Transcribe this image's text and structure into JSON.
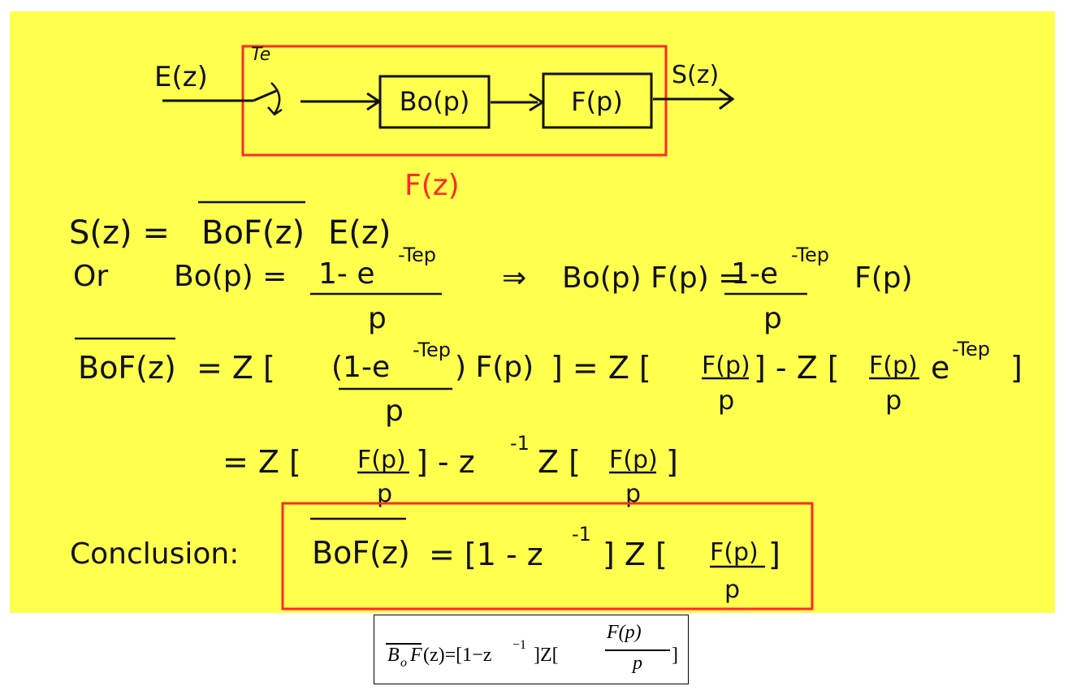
{
  "colors": {
    "board": "#ffff4d",
    "ink": "#111111",
    "highlight": "#ff2a2a"
  },
  "diagram": {
    "input": "E(z)",
    "sampler": "Te",
    "blocks": [
      "Bo(p)",
      "F(p)"
    ],
    "output": "S(z)",
    "group_label": "F(z)"
  },
  "equations": {
    "line1": {
      "lhs": "S(z) =",
      "bar": "BoF(z)",
      "rhs": "E(z)"
    },
    "line2": {
      "or": "Or",
      "bo": "Bo(p) =",
      "num": "1- e",
      "exp": "-Tep",
      "den": "p",
      "implies": "⇒",
      "mid": "Bo(p) F(p) =",
      "num2": "1-e",
      "exp2": "-Tep",
      "tail": "F(p)",
      "den2": "p"
    },
    "line3": {
      "bar": "BoF(z)",
      "a": "= Z [",
      "num": "(1-e",
      "exp": ") F(p)",
      "expsup": "-Tep",
      "den": "p",
      "b": "] = Z [",
      "fp": "F(p)",
      "p1": "p",
      "c": "] - Z [",
      "fp2": "F(p)",
      "p2": "p",
      "e": "e",
      "expe": "-Tep",
      "d": "]"
    },
    "line4": {
      "a": "=  Z [",
      "fp": "F(p)",
      "p": "p",
      "b": "] - z",
      "sup": "-1",
      "c": "Z [",
      "fp2": "F(p)",
      "p2": "p",
      "d": "]"
    },
    "conclusion": {
      "label": "Conclusion:",
      "bar": "BoF(z)",
      "a": "= [1 - z",
      "sup": "-1",
      "b": "] Z [",
      "fp": "F(p)",
      "p": "p",
      "c": "]"
    }
  },
  "formula": {
    "bar": "B",
    "sub": "o",
    "f": "F",
    "rest": "(z)=[1−z",
    "sup": "−1",
    "rest2": "]Z[",
    "num": "F(p)",
    "den": "p",
    "close": "]"
  }
}
